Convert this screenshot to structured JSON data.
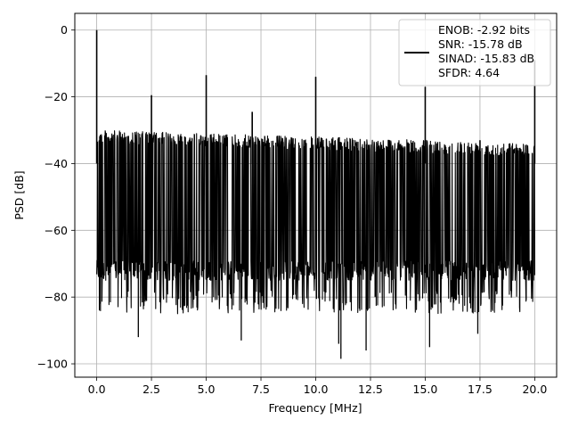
{
  "chart_data": {
    "type": "line",
    "title": "",
    "xlabel": "Frequency [MHz]",
    "ylabel": "PSD [dB]",
    "xlim": [
      -1,
      21
    ],
    "ylim": [
      -104,
      5
    ],
    "x_ticks": [
      0,
      2.5,
      5,
      7.5,
      10,
      12.5,
      15,
      17.5,
      20
    ],
    "x_tick_labels": [
      "0.0",
      "2.5",
      "5.0",
      "7.5",
      "10.0",
      "12.5",
      "15.0",
      "17.5",
      "20.0"
    ],
    "y_ticks": [
      0,
      -20,
      -40,
      -60,
      -80,
      -100
    ],
    "y_tick_labels": [
      "0",
      "−20",
      "−40",
      "−60",
      "−80",
      "−100"
    ],
    "grid": true,
    "legend_position": "top-right",
    "legend_entries": [
      "ENOB: -2.92 bits",
      "SNR: -15.78 dB",
      "SINAD: -15.83 dB",
      "SFDR: 4.64"
    ],
    "line_color": "#000000",
    "noise_floor": {
      "x_range": [
        0,
        20
      ],
      "upper_db_start": -30,
      "upper_db_end": -34,
      "lower_db": -75
    },
    "spurs": [
      {
        "x": 0.0,
        "y": 0
      },
      {
        "x": 2.5,
        "y": -19.5
      },
      {
        "x": 5.0,
        "y": -13.5
      },
      {
        "x": 7.1,
        "y": -24.5
      },
      {
        "x": 10.0,
        "y": -14
      },
      {
        "x": 15.0,
        "y": -17
      },
      {
        "x": 17.5,
        "y": -33
      },
      {
        "x": 20.0,
        "y": -9
      }
    ],
    "dips": [
      {
        "x": 0.15,
        "y": -82
      },
      {
        "x": 1.9,
        "y": -92
      },
      {
        "x": 6.6,
        "y": -93
      },
      {
        "x": 11.05,
        "y": -94
      },
      {
        "x": 11.15,
        "y": -98.5
      },
      {
        "x": 12.3,
        "y": -96
      },
      {
        "x": 15.2,
        "y": -95
      },
      {
        "x": 17.4,
        "y": -91
      }
    ]
  }
}
